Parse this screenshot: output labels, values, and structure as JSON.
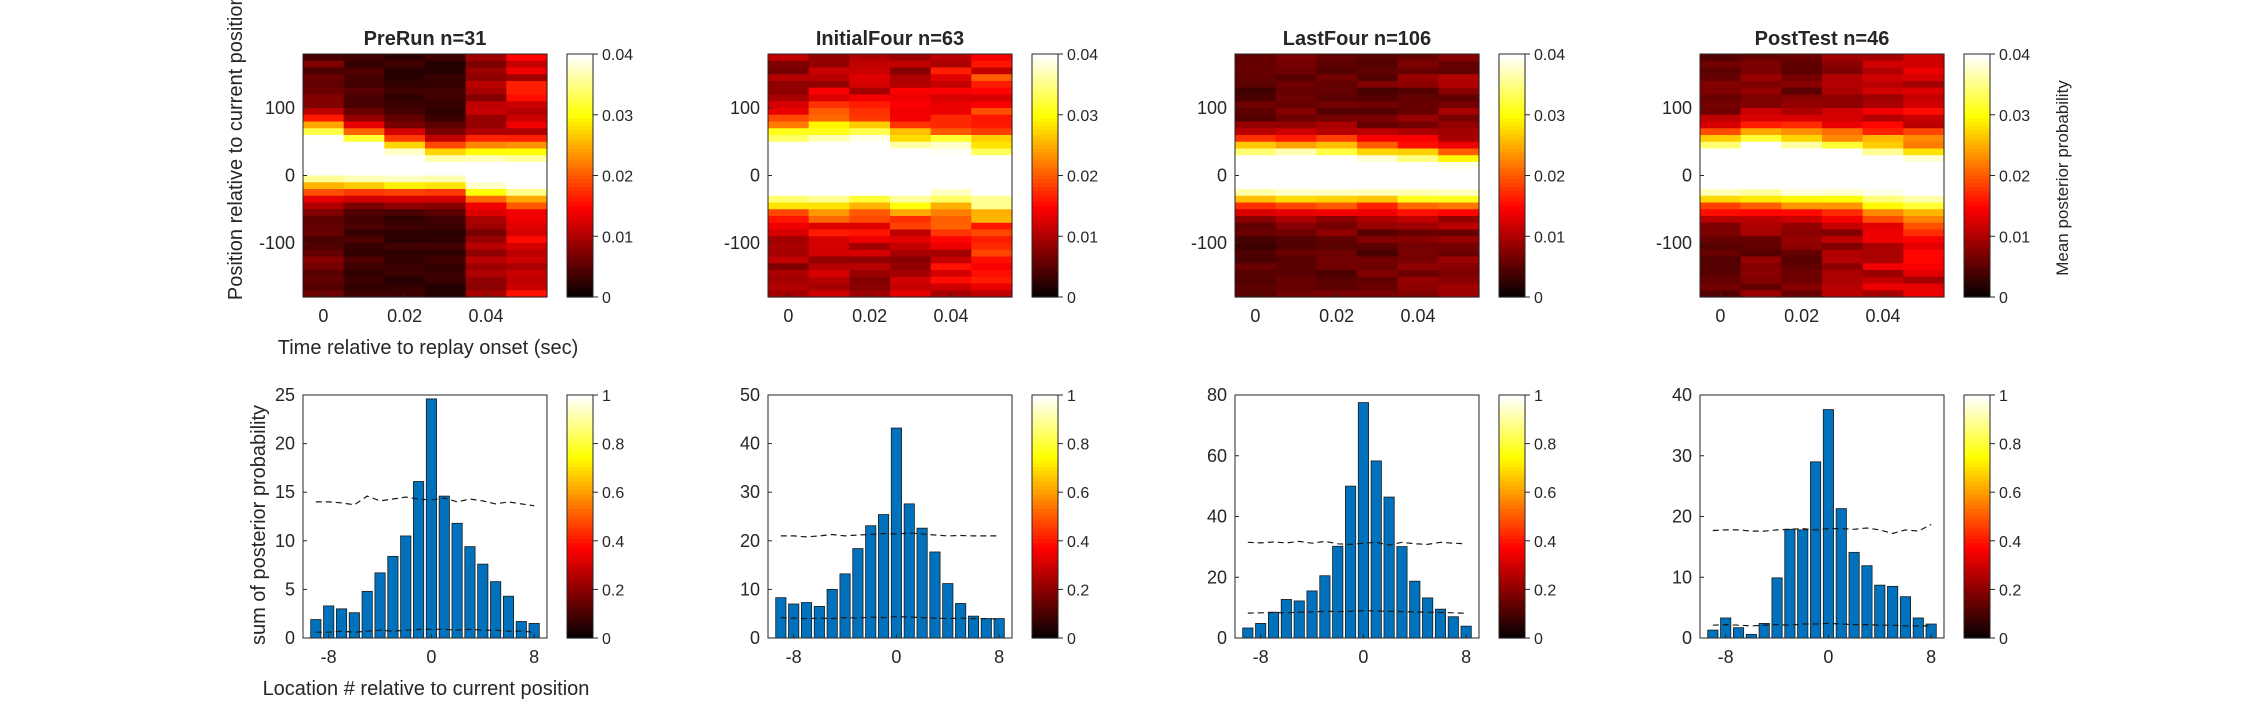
{
  "figure": {
    "heatmap_ylabel": "Position relative to current position (de",
    "heatmap_xlabel": "Time relative to replay onset (sec)",
    "hist_ylabel": "sum of posterior probability",
    "hist_xlabel": "Location # relative to current position",
    "colorbar_label": "Mean posterior probability"
  },
  "chart_data": [
    {
      "type": "heatmap",
      "title": "PreRun n=31",
      "x_ticks": [
        "0",
        "0.02",
        "0.04"
      ],
      "y_ticks": [
        "100",
        "0",
        "-100"
      ],
      "xlim": [
        -0.005,
        0.055
      ],
      "ylim": [
        -180,
        180
      ],
      "colorbar_ticks": [
        "0.04",
        "0.03",
        "0.02",
        "0.01",
        "0"
      ],
      "clim": [
        0,
        0.04
      ],
      "columns": [
        0,
        0.01,
        0.02,
        0.03,
        0.04,
        0.05
      ],
      "band_center_deg": [
        28,
        22,
        15,
        10,
        5,
        0
      ],
      "band_width_deg": [
        32,
        30,
        28,
        26,
        26,
        24
      ],
      "peak": [
        0.05,
        0.05,
        0.045,
        0.04,
        0.04,
        0.04
      ],
      "background": [
        0.006,
        0.004,
        0.003,
        0.003,
        0.009,
        0.013
      ],
      "colormap": "hot"
    },
    {
      "type": "heatmap",
      "title": "InitialFour n=63",
      "x_ticks": [
        "0",
        "0.02",
        "0.04"
      ],
      "y_ticks": [
        "100",
        "0",
        "-100"
      ],
      "xlim": [
        -0.005,
        0.055
      ],
      "ylim": [
        -180,
        180
      ],
      "colorbar_ticks": [
        "0.04",
        "0.03",
        "0.02",
        "0.01",
        "0"
      ],
      "clim": [
        0,
        0.04
      ],
      "columns": [
        0,
        0.01,
        0.02,
        0.03,
        0.04,
        0.05
      ],
      "band_center_deg": [
        12,
        14,
        12,
        8,
        5,
        0
      ],
      "band_width_deg": [
        42,
        44,
        44,
        40,
        38,
        34
      ],
      "peak": [
        0.045,
        0.045,
        0.042,
        0.04,
        0.038,
        0.036
      ],
      "background": [
        0.009,
        0.01,
        0.01,
        0.011,
        0.013,
        0.016
      ],
      "colormap": "hot"
    },
    {
      "type": "heatmap",
      "title": "LastFour n=106",
      "x_ticks": [
        "0",
        "0.02",
        "0.04"
      ],
      "y_ticks": [
        "100",
        "0",
        "-100"
      ],
      "xlim": [
        -0.005,
        0.055
      ],
      "ylim": [
        -180,
        180
      ],
      "colorbar_ticks": [
        "0.04",
        "0.03",
        "0.02",
        "0.01",
        "0"
      ],
      "clim": [
        0,
        0.04
      ],
      "columns": [
        0,
        0.01,
        0.02,
        0.03,
        0.04,
        0.05
      ],
      "band_center_deg": [
        5,
        4,
        3,
        1,
        -2,
        -5
      ],
      "band_width_deg": [
        30,
        30,
        30,
        28,
        28,
        26
      ],
      "peak": [
        0.05,
        0.05,
        0.05,
        0.048,
        0.045,
        0.042
      ],
      "background": [
        0.005,
        0.006,
        0.006,
        0.006,
        0.007,
        0.008
      ],
      "colormap": "hot"
    },
    {
      "type": "heatmap",
      "title": "PostTest n=46",
      "x_ticks": [
        "0",
        "0.02",
        "0.04"
      ],
      "y_ticks": [
        "100",
        "0",
        "-100"
      ],
      "xlim": [
        -0.005,
        0.055
      ],
      "ylim": [
        -180,
        180
      ],
      "colorbar_ticks": [
        "0.04",
        "0.03",
        "0.02",
        "0.01",
        "0"
      ],
      "clim": [
        0,
        0.04
      ],
      "columns": [
        0,
        0.01,
        0.02,
        0.03,
        0.04,
        0.05
      ],
      "band_center_deg": [
        10,
        12,
        10,
        6,
        2,
        -5
      ],
      "band_width_deg": [
        34,
        36,
        36,
        34,
        34,
        32
      ],
      "peak": [
        0.05,
        0.05,
        0.048,
        0.045,
        0.042,
        0.04
      ],
      "background": [
        0.006,
        0.007,
        0.007,
        0.009,
        0.011,
        0.013
      ],
      "colormap": "hot"
    },
    {
      "type": "bar",
      "title": "",
      "x": [
        -9,
        -8,
        -7,
        -6,
        -5,
        -4,
        -3,
        -2,
        -1,
        0,
        1,
        2,
        3,
        4,
        5,
        6,
        7,
        8
      ],
      "values": [
        1.9,
        3.3,
        3.0,
        2.6,
        4.8,
        6.7,
        8.4,
        10.5,
        16.1,
        24.6,
        14.6,
        11.8,
        9.4,
        7.6,
        5.8,
        4.3,
        1.7,
        1.5
      ],
      "x_ticks": [
        "-8",
        "0",
        "8"
      ],
      "y_ticks": [
        "0",
        "5",
        "10",
        "15",
        "20",
        "25"
      ],
      "xlim": [
        -10,
        9
      ],
      "ylim": [
        0,
        25
      ],
      "upper_line": [
        14.0,
        14.0,
        13.9,
        13.7,
        14.6,
        14.1,
        14.3,
        14.5,
        14.3,
        14.2,
        14.4,
        14.0,
        14.3,
        14.1,
        13.8,
        14.0,
        13.8,
        13.6
      ],
      "lower_line": [
        0.6,
        0.6,
        0.7,
        0.6,
        0.7,
        0.8,
        0.7,
        0.8,
        0.9,
        0.9,
        0.9,
        0.8,
        0.9,
        0.8,
        0.8,
        0.7,
        0.7,
        0.6
      ],
      "bar_color": "#0072BD",
      "colorbar_ticks": [
        "1",
        "0.8",
        "0.6",
        "0.4",
        "0.2",
        "0"
      ]
    },
    {
      "type": "bar",
      "title": "",
      "x": [
        -9,
        -8,
        -7,
        -6,
        -5,
        -4,
        -3,
        -2,
        -1,
        0,
        1,
        2,
        3,
        4,
        5,
        6,
        7,
        8
      ],
      "values": [
        8.3,
        7.0,
        7.3,
        6.5,
        10.0,
        13.2,
        18.4,
        23.1,
        25.4,
        43.2,
        27.6,
        22.6,
        17.7,
        11.2,
        7.1,
        4.5,
        4.0,
        4.0
      ],
      "x_ticks": [
        "-8",
        "0",
        "8"
      ],
      "y_ticks": [
        "0",
        "10",
        "20",
        "30",
        "40",
        "50"
      ],
      "xlim": [
        -10,
        9
      ],
      "ylim": [
        0,
        50
      ],
      "upper_line": [
        21.0,
        21.0,
        20.8,
        21.0,
        21.3,
        21.0,
        21.2,
        21.3,
        21.5,
        21.4,
        21.6,
        21.4,
        21.2,
        21.0,
        21.1,
        21.0,
        21.0,
        21.0
      ],
      "lower_line": [
        4.2,
        4.1,
        4.0,
        4.1,
        4.0,
        4.2,
        4.1,
        4.3,
        4.2,
        4.4,
        4.3,
        4.2,
        4.1,
        4.0,
        4.1,
        4.0,
        4.0,
        3.9
      ],
      "bar_color": "#0072BD",
      "colorbar_ticks": [
        "1",
        "0.8",
        "0.6",
        "0.4",
        "0.2",
        "0"
      ]
    },
    {
      "type": "bar",
      "title": "",
      "x": [
        -9,
        -8,
        -7,
        -6,
        -5,
        -4,
        -3,
        -2,
        -1,
        0,
        1,
        2,
        3,
        4,
        5,
        6,
        7,
        8
      ],
      "values": [
        3.3,
        4.8,
        8.5,
        12.7,
        12.2,
        15.5,
        20.5,
        30.2,
        50.0,
        77.5,
        58.3,
        46.4,
        30.1,
        18.7,
        13.2,
        9.5,
        7.0,
        3.9
      ],
      "x_ticks": [
        "-8",
        "0",
        "8"
      ],
      "y_ticks": [
        "0",
        "20",
        "40",
        "60",
        "80"
      ],
      "xlim": [
        -10,
        9
      ],
      "ylim": [
        0,
        80
      ],
      "upper_line": [
        31.5,
        31.3,
        31.6,
        31.3,
        31.8,
        31.2,
        31.8,
        31.0,
        30.8,
        31.2,
        31.5,
        30.6,
        31.5,
        31.0,
        30.8,
        31.5,
        31.2,
        31.0
      ],
      "lower_line": [
        8.2,
        8.3,
        8.4,
        8.3,
        8.5,
        8.6,
        8.8,
        8.7,
        8.8,
        9.0,
        8.9,
        8.8,
        8.7,
        8.6,
        8.5,
        8.4,
        8.3,
        8.1
      ],
      "bar_color": "#0072BD",
      "colorbar_ticks": [
        "1",
        "0.8",
        "0.6",
        "0.4",
        "0.2",
        "0"
      ]
    },
    {
      "type": "bar",
      "title": "",
      "x": [
        -9,
        -8,
        -7,
        -6,
        -5,
        -4,
        -3,
        -2,
        -1,
        0,
        1,
        2,
        3,
        4,
        5,
        6,
        7,
        8
      ],
      "values": [
        1.3,
        3.3,
        1.7,
        0.6,
        2.4,
        9.9,
        17.9,
        17.8,
        29.0,
        37.6,
        21.3,
        14.1,
        11.9,
        8.7,
        8.5,
        6.8,
        3.3,
        2.3
      ],
      "x_ticks": [
        "-8",
        "0",
        "8"
      ],
      "y_ticks": [
        "0",
        "10",
        "20",
        "30",
        "40"
      ],
      "xlim": [
        -10,
        9
      ],
      "ylim": [
        0,
        40
      ],
      "upper_line": [
        17.7,
        17.8,
        17.8,
        17.6,
        17.6,
        17.8,
        17.9,
        18.0,
        17.8,
        18.0,
        18.0,
        17.9,
        18.1,
        17.8,
        17.2,
        17.8,
        17.6,
        18.7
      ],
      "lower_line": [
        2.1,
        2.2,
        2.1,
        2.0,
        2.1,
        2.2,
        2.1,
        2.3,
        2.3,
        2.4,
        2.3,
        2.2,
        2.2,
        2.1,
        2.1,
        2.0,
        2.0,
        2.0
      ],
      "bar_color": "#0072BD",
      "colorbar_ticks": [
        "1",
        "0.8",
        "0.6",
        "0.4",
        "0.2",
        "0"
      ]
    }
  ]
}
